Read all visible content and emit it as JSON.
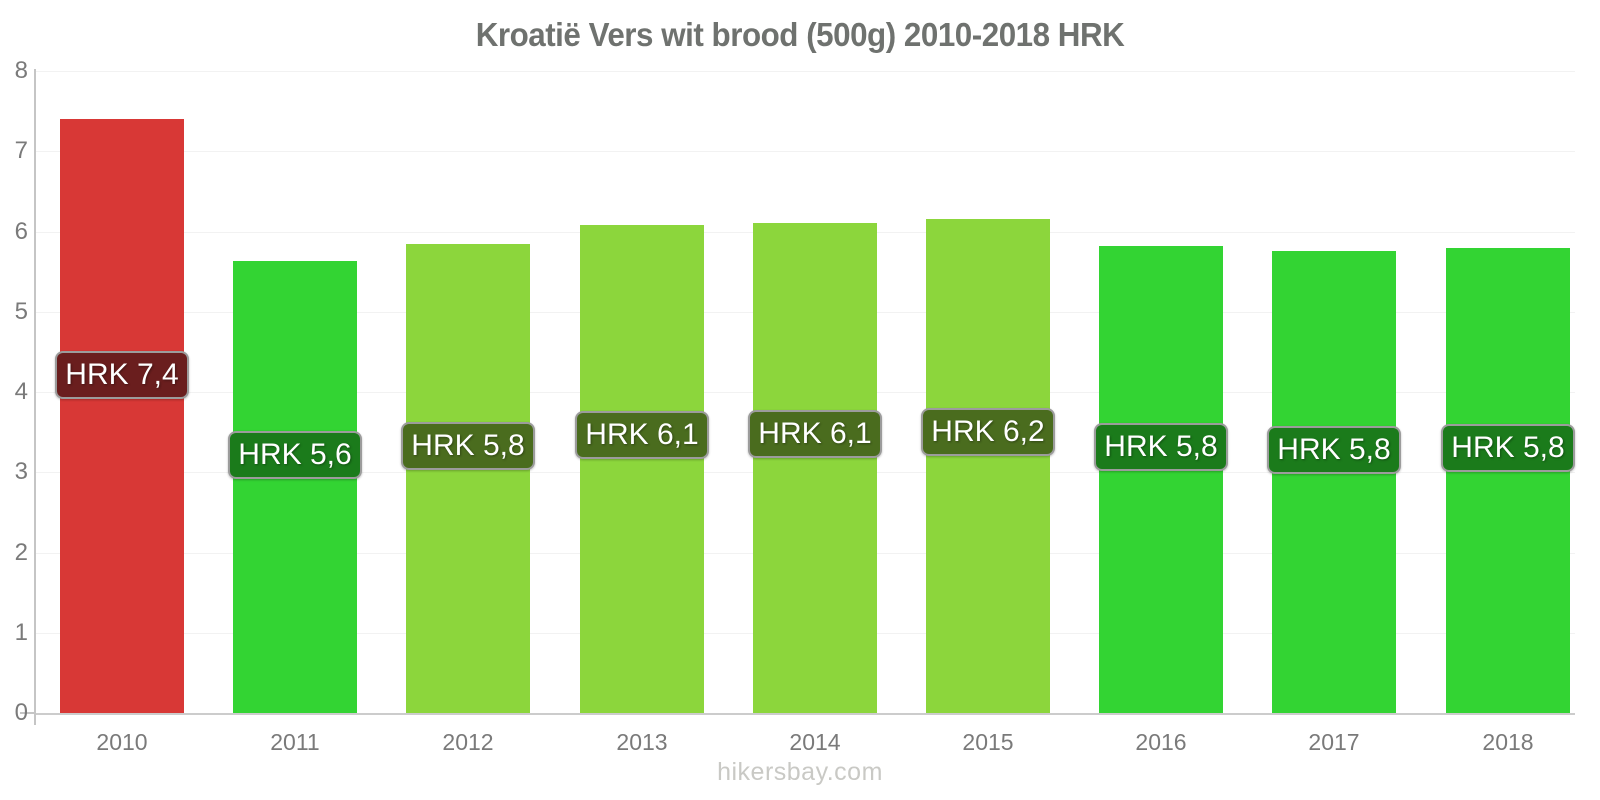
{
  "title": "Kroatië Vers wit brood (500g) 2010-2018 HRK",
  "footer": "hikersbay.com",
  "chart_data": {
    "type": "bar",
    "title": "Kroatië Vers wit brood (500g) 2010-2018 HRK",
    "categories": [
      "2010",
      "2011",
      "2012",
      "2013",
      "2014",
      "2015",
      "2016",
      "2017",
      "2018"
    ],
    "values": [
      7.4,
      5.6,
      5.8,
      6.1,
      6.1,
      6.2,
      5.8,
      5.8,
      5.8
    ],
    "values_precise": [
      7.4,
      5.63,
      5.84,
      6.08,
      6.11,
      6.15,
      5.82,
      5.76,
      5.8
    ],
    "bar_labels": [
      "HRK 7,4",
      "HRK 5,6",
      "HRK 5,8",
      "HRK 6,1",
      "HRK 6,1",
      "HRK 6,2",
      "HRK 5,8",
      "HRK 5,8",
      "HRK 5,8"
    ],
    "currency": "HRK",
    "xlabel": "",
    "ylabel": "",
    "ylim": [
      0,
      8
    ],
    "yticks": [
      "0",
      "1",
      "2",
      "3",
      "4",
      "5",
      "6",
      "7",
      "8"
    ],
    "grid": "horizontal",
    "bar_colors": [
      "#d83836",
      "#33d433",
      "#8cd63c",
      "#8cd63c",
      "#8cd63c",
      "#8cd63c",
      "#33d433",
      "#33d433",
      "#33d433"
    ],
    "label_bg_colors": [
      "#6a1e1e",
      "#1b7b1b",
      "#4a6c1e",
      "#4a6c1e",
      "#4a6c1e",
      "#4a6c1e",
      "#1b7b1b",
      "#1b7b1b",
      "#1b7b1b"
    ],
    "label_border_color": "#9c9c9c",
    "label_text_color": "#ffffff"
  },
  "colors": {
    "title": "#6f726f",
    "axis_line": "#c5c5c5",
    "gridline": "#f2f2f2",
    "baseline": "#cccccc",
    "tick_label": "#7a7a7a",
    "footer": "#c9c9c5",
    "background": "#ffffff"
  }
}
